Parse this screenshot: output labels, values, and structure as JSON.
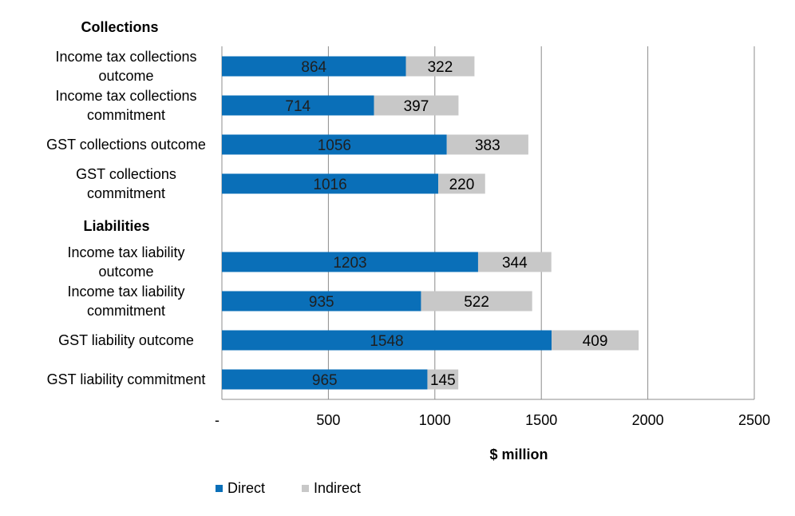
{
  "chart_data": {
    "type": "bar",
    "orientation": "horizontal",
    "stacked": true,
    "xlabel": "$ million",
    "xlim": [
      0,
      2500
    ],
    "xticks": [
      0,
      500,
      1000,
      1500,
      2000,
      2500
    ],
    "xtick_labels": [
      "-",
      "500",
      "1000",
      "1500",
      "2000",
      "2500"
    ],
    "groups": [
      {
        "label": "Collections",
        "categories": [
          "Income tax collections outcome",
          "Income tax collections commitment",
          "GST collections outcome",
          "GST collections commitment"
        ]
      },
      {
        "label": "Liabilities",
        "categories": [
          "Income tax liability outcome",
          "Income tax liability commitment",
          "GST liability outcome",
          "GST liability commitment"
        ]
      }
    ],
    "categories": [
      [
        "Income tax collections",
        "outcome"
      ],
      [
        "Income tax collections",
        "commitment"
      ],
      [
        "GST collections outcome"
      ],
      [
        "GST collections",
        "commitment"
      ],
      [
        "Income tax liability",
        "outcome"
      ],
      [
        "Income tax liability",
        "commitment"
      ],
      [
        "GST liability outcome"
      ],
      [
        "GST liability commitment"
      ]
    ],
    "series": [
      {
        "name": "Direct",
        "color": "#0a6fb8",
        "values": [
          864,
          714,
          1056,
          1016,
          1203,
          935,
          1548,
          965
        ]
      },
      {
        "name": "Indirect",
        "color": "#c8c8c8",
        "values": [
          322,
          397,
          383,
          220,
          344,
          522,
          409,
          145
        ]
      }
    ],
    "grid": true,
    "legend": "bottom"
  }
}
